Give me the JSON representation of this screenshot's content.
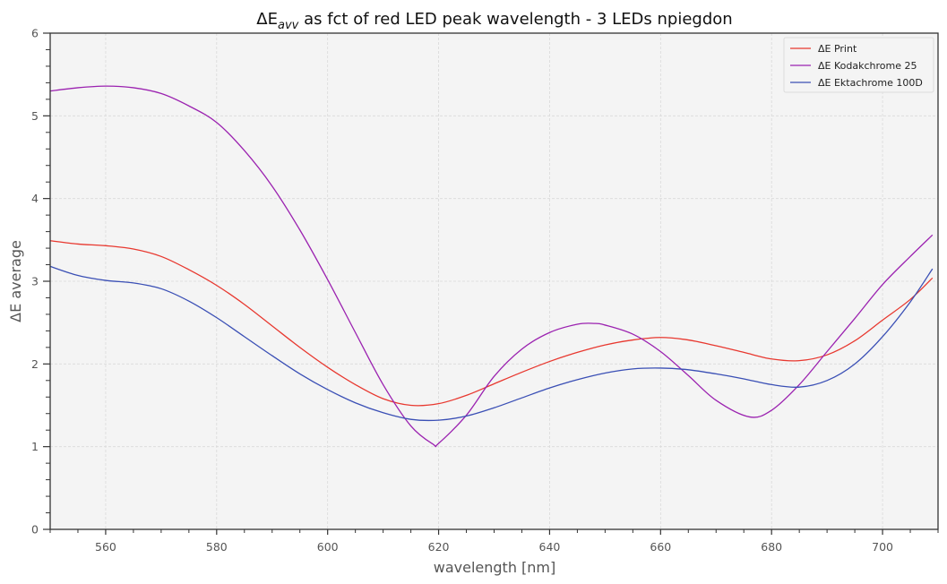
{
  "chart_data": {
    "type": "line",
    "title_main": "ΔE",
    "title_sub": "avv",
    "title_rest": " as fct of red LED peak wavelength - 3 LEDs npiegdon",
    "title": "ΔE_avv as fct of red LED peak wavelength - 3 LEDs npiegdon",
    "xlabel": "wavelength [nm]",
    "ylabel": "ΔE average",
    "xlim": [
      550,
      710
    ],
    "ylim": [
      0,
      6
    ],
    "xticks": [
      560,
      580,
      600,
      620,
      640,
      660,
      680,
      700
    ],
    "xtick_labels": [
      "560",
      "580",
      "600",
      "620",
      "640",
      "660",
      "680",
      "700"
    ],
    "xminor_step": 5,
    "yticks": [
      0,
      1,
      2,
      3,
      4,
      5,
      6
    ],
    "ytick_labels": [
      "0",
      "1",
      "2",
      "3",
      "4",
      "5",
      "6"
    ],
    "yminor_step": 0.2,
    "grid": true,
    "legend_position": "top-right",
    "colors": {
      "background": "#f4f4f4",
      "grid": "#d9d9d9",
      "axis": "#333333"
    },
    "series": [
      {
        "name": "ΔE Print",
        "color": "#e8382f",
        "x": [
          550,
          555,
          560,
          565,
          570,
          575,
          580,
          585,
          590,
          595,
          600,
          605,
          610,
          615,
          620,
          625,
          630,
          635,
          640,
          645,
          650,
          655,
          660,
          665,
          670,
          675,
          680,
          685,
          690,
          695,
          700,
          705,
          709
        ],
        "y": [
          3.49,
          3.45,
          3.43,
          3.39,
          3.3,
          3.14,
          2.95,
          2.72,
          2.46,
          2.2,
          1.96,
          1.75,
          1.58,
          1.5,
          1.52,
          1.62,
          1.76,
          1.9,
          2.03,
          2.14,
          2.23,
          2.29,
          2.32,
          2.29,
          2.22,
          2.14,
          2.06,
          2.04,
          2.11,
          2.28,
          2.53,
          2.78,
          3.04
        ]
      },
      {
        "name": "ΔE Kodakchrome 25",
        "color": "#9b22b0",
        "x": [
          550,
          555,
          560,
          565,
          570,
          575,
          580,
          585,
          590,
          595,
          600,
          605,
          610,
          615,
          619,
          620,
          625,
          630,
          635,
          640,
          645,
          648,
          650,
          655,
          660,
          665,
          670,
          676,
          680,
          685,
          690,
          695,
          700,
          705,
          709
        ],
        "y": [
          5.3,
          5.34,
          5.36,
          5.34,
          5.27,
          5.12,
          4.92,
          4.58,
          4.15,
          3.62,
          3.02,
          2.38,
          1.75,
          1.25,
          1.03,
          1.04,
          1.38,
          1.85,
          2.18,
          2.38,
          2.48,
          2.49,
          2.47,
          2.36,
          2.15,
          1.86,
          1.56,
          1.36,
          1.44,
          1.75,
          2.15,
          2.55,
          2.96,
          3.3,
          3.56
        ]
      },
      {
        "name": "ΔE Ektachrome 100D",
        "color": "#3a4fb5",
        "x": [
          550,
          555,
          560,
          565,
          570,
          575,
          580,
          585,
          590,
          595,
          600,
          605,
          610,
          615,
          620,
          625,
          630,
          635,
          640,
          645,
          650,
          655,
          660,
          665,
          670,
          675,
          680,
          685,
          690,
          695,
          700,
          705,
          709
        ],
        "y": [
          3.18,
          3.07,
          3.01,
          2.98,
          2.91,
          2.76,
          2.56,
          2.33,
          2.1,
          1.88,
          1.69,
          1.53,
          1.41,
          1.33,
          1.32,
          1.37,
          1.47,
          1.59,
          1.71,
          1.81,
          1.89,
          1.94,
          1.95,
          1.93,
          1.88,
          1.82,
          1.75,
          1.72,
          1.8,
          2.0,
          2.33,
          2.75,
          3.15
        ]
      }
    ]
  }
}
